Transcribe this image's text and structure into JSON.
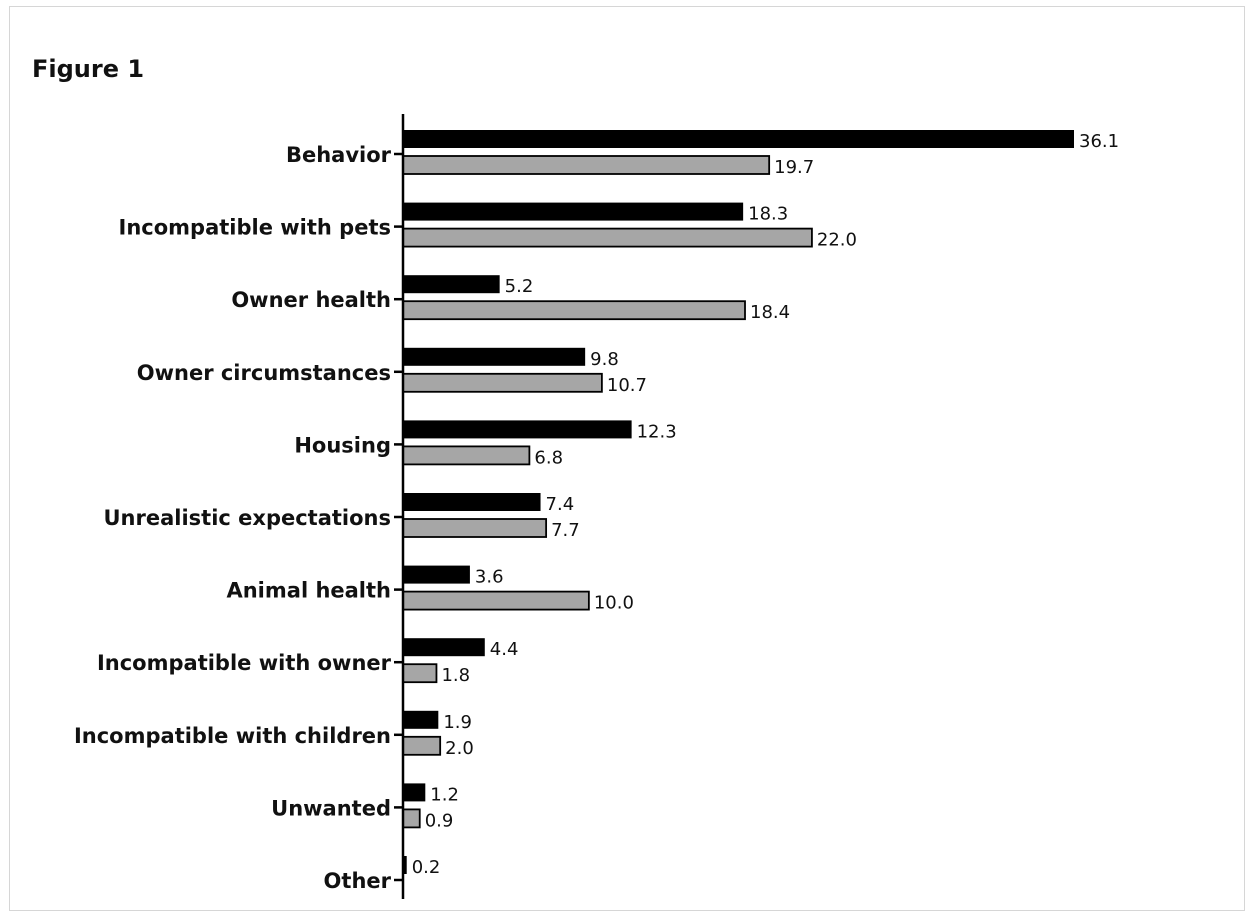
{
  "figure": {
    "title": "Figure 1"
  },
  "chart_data": {
    "type": "bar",
    "orientation": "horizontal",
    "title": "",
    "xlabel": "",
    "ylabel": "",
    "xlim": [
      0,
      36.1
    ],
    "grid": false,
    "legend": "none",
    "categories": [
      "Behavior",
      "Incompatible with pets",
      "Owner health",
      "Owner circumstances",
      "Housing",
      "Unrealistic expectations",
      "Animal health",
      "Incompatible with owner",
      "Incompatible with children",
      "Unwanted",
      "Other"
    ],
    "series": [
      {
        "color": "#000000",
        "values": [
          36.1,
          18.3,
          5.2,
          9.8,
          12.3,
          7.4,
          3.6,
          4.4,
          1.9,
          1.2,
          0.2
        ],
        "labels": [
          "36.1",
          "18.3",
          "5.2",
          "9.8",
          "12.3",
          "7.4",
          "3.6",
          "4.4",
          "1.9",
          "1.2",
          "0.2"
        ]
      },
      {
        "color": "#a6a6a6",
        "values": [
          19.7,
          22.0,
          18.4,
          10.7,
          6.8,
          7.7,
          10.0,
          1.8,
          2.0,
          0.9,
          null
        ],
        "labels": [
          "19.7",
          "22.0",
          "18.4",
          "10.7",
          "6.8",
          "7.7",
          "10.0",
          "1.8",
          "2.0",
          "0.9",
          null
        ]
      }
    ]
  }
}
